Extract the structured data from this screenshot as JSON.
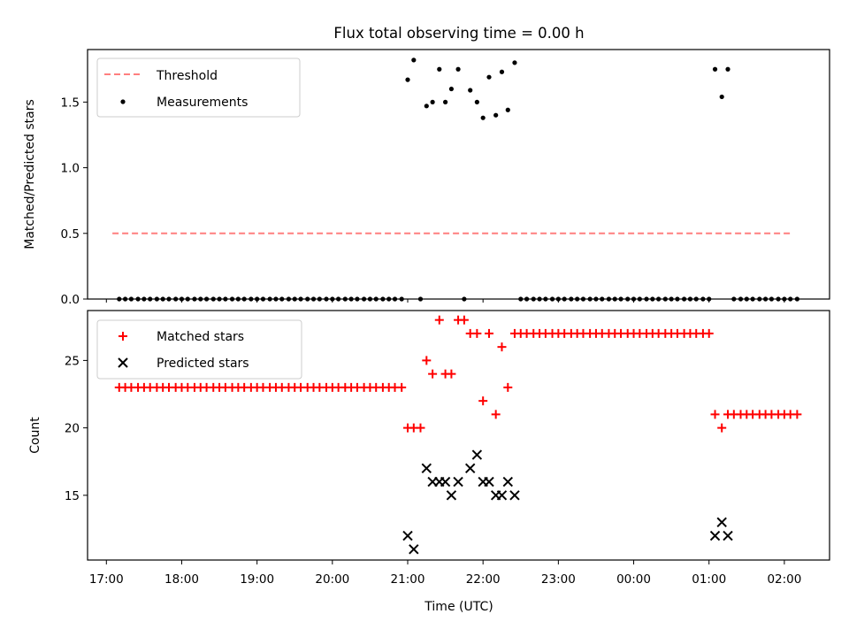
{
  "figure": {
    "title": "Flux total observing time = 0.00 h"
  },
  "chart_data": [
    {
      "type": "scatter",
      "title": "Flux total observing time = 0.00 h",
      "xlabel": "",
      "ylabel": "Matched/Predicted stars",
      "ylim": [
        0.0,
        1.9
      ],
      "yticks": [
        "0.0",
        "0.5",
        "1.0",
        "1.5"
      ],
      "grid": false,
      "legend_position": "top-left",
      "threshold": {
        "name": "Threshold",
        "value": 0.5,
        "x_start": 17.08,
        "x_end": 26.08,
        "color": "#ff7f7f"
      },
      "series": [
        {
          "name": "Measurements",
          "color": "#000000",
          "points": [
            [
              17.17,
              0
            ],
            [
              17.25,
              0
            ],
            [
              17.33,
              0
            ],
            [
              17.42,
              0
            ],
            [
              17.5,
              0
            ],
            [
              17.58,
              0
            ],
            [
              17.67,
              0
            ],
            [
              17.75,
              0
            ],
            [
              17.83,
              0
            ],
            [
              17.92,
              0
            ],
            [
              18.0,
              0
            ],
            [
              18.08,
              0
            ],
            [
              18.17,
              0
            ],
            [
              18.25,
              0
            ],
            [
              18.33,
              0
            ],
            [
              18.42,
              0
            ],
            [
              18.5,
              0
            ],
            [
              18.58,
              0
            ],
            [
              18.67,
              0
            ],
            [
              18.75,
              0
            ],
            [
              18.83,
              0
            ],
            [
              18.92,
              0
            ],
            [
              19.0,
              0
            ],
            [
              19.08,
              0
            ],
            [
              19.17,
              0
            ],
            [
              19.25,
              0
            ],
            [
              19.33,
              0
            ],
            [
              19.42,
              0
            ],
            [
              19.5,
              0
            ],
            [
              19.58,
              0
            ],
            [
              19.67,
              0
            ],
            [
              19.75,
              0
            ],
            [
              19.83,
              0
            ],
            [
              19.92,
              0
            ],
            [
              20.0,
              0
            ],
            [
              20.08,
              0
            ],
            [
              20.17,
              0
            ],
            [
              20.25,
              0
            ],
            [
              20.33,
              0
            ],
            [
              20.42,
              0
            ],
            [
              20.5,
              0
            ],
            [
              20.58,
              0
            ],
            [
              20.67,
              0
            ],
            [
              20.75,
              0
            ],
            [
              20.83,
              0
            ],
            [
              20.92,
              0
            ],
            [
              21.0,
              1.67
            ],
            [
              21.08,
              1.82
            ],
            [
              21.17,
              0
            ],
            [
              21.25,
              1.47
            ],
            [
              21.33,
              1.5
            ],
            [
              21.42,
              1.75
            ],
            [
              21.5,
              1.5
            ],
            [
              21.58,
              1.6
            ],
            [
              21.67,
              1.75
            ],
            [
              21.75,
              0
            ],
            [
              21.83,
              1.59
            ],
            [
              21.92,
              1.5
            ],
            [
              22.0,
              1.38
            ],
            [
              22.08,
              1.69
            ],
            [
              22.17,
              1.4
            ],
            [
              22.25,
              1.73
            ],
            [
              22.33,
              1.44
            ],
            [
              22.42,
              1.8
            ],
            [
              22.5,
              0
            ],
            [
              22.58,
              0
            ],
            [
              22.67,
              0
            ],
            [
              22.75,
              0
            ],
            [
              22.83,
              0
            ],
            [
              22.92,
              0
            ],
            [
              23.0,
              0
            ],
            [
              23.08,
              0
            ],
            [
              23.17,
              0
            ],
            [
              23.25,
              0
            ],
            [
              23.33,
              0
            ],
            [
              23.42,
              0
            ],
            [
              23.5,
              0
            ],
            [
              23.58,
              0
            ],
            [
              23.67,
              0
            ],
            [
              23.75,
              0
            ],
            [
              23.83,
              0
            ],
            [
              23.92,
              0
            ],
            [
              24.0,
              0
            ],
            [
              24.08,
              0
            ],
            [
              24.17,
              0
            ],
            [
              24.25,
              0
            ],
            [
              24.33,
              0
            ],
            [
              24.42,
              0
            ],
            [
              24.5,
              0
            ],
            [
              24.58,
              0
            ],
            [
              24.67,
              0
            ],
            [
              24.75,
              0
            ],
            [
              24.83,
              0
            ],
            [
              24.92,
              0
            ],
            [
              25.0,
              0
            ],
            [
              25.08,
              1.75
            ],
            [
              25.17,
              1.54
            ],
            [
              25.25,
              1.75
            ],
            [
              25.33,
              0
            ],
            [
              25.42,
              0
            ],
            [
              25.5,
              0
            ],
            [
              25.58,
              0
            ],
            [
              25.67,
              0
            ],
            [
              25.75,
              0
            ],
            [
              25.83,
              0
            ],
            [
              25.92,
              0
            ],
            [
              26.0,
              0
            ],
            [
              26.08,
              0
            ],
            [
              26.17,
              0
            ]
          ]
        }
      ]
    },
    {
      "type": "scatter",
      "xlabel": "Time (UTC)",
      "ylabel": "Count",
      "ylim": [
        10.2,
        28.7
      ],
      "yticks": [
        "15",
        "20",
        "25"
      ],
      "xlim": [
        16.75,
        26.6
      ],
      "xticks": [
        {
          "x": 17,
          "label": "17:00"
        },
        {
          "x": 18,
          "label": "18:00"
        },
        {
          "x": 19,
          "label": "19:00"
        },
        {
          "x": 20,
          "label": "20:00"
        },
        {
          "x": 21,
          "label": "21:00"
        },
        {
          "x": 22,
          "label": "22:00"
        },
        {
          "x": 23,
          "label": "23:00"
        },
        {
          "x": 24,
          "label": "00:00"
        },
        {
          "x": 25,
          "label": "01:00"
        },
        {
          "x": 26,
          "label": "02:00"
        }
      ],
      "grid": false,
      "legend_position": "top-left",
      "series": [
        {
          "name": "Matched stars",
          "marker": "plus",
          "color": "#ff0000",
          "points": [
            [
              17.17,
              23
            ],
            [
              17.25,
              23
            ],
            [
              17.33,
              23
            ],
            [
              17.42,
              23
            ],
            [
              17.5,
              23
            ],
            [
              17.58,
              23
            ],
            [
              17.67,
              23
            ],
            [
              17.75,
              23
            ],
            [
              17.83,
              23
            ],
            [
              17.92,
              23
            ],
            [
              18.0,
              23
            ],
            [
              18.08,
              23
            ],
            [
              18.17,
              23
            ],
            [
              18.25,
              23
            ],
            [
              18.33,
              23
            ],
            [
              18.42,
              23
            ],
            [
              18.5,
              23
            ],
            [
              18.58,
              23
            ],
            [
              18.67,
              23
            ],
            [
              18.75,
              23
            ],
            [
              18.83,
              23
            ],
            [
              18.92,
              23
            ],
            [
              19.0,
              23
            ],
            [
              19.08,
              23
            ],
            [
              19.17,
              23
            ],
            [
              19.25,
              23
            ],
            [
              19.33,
              23
            ],
            [
              19.42,
              23
            ],
            [
              19.5,
              23
            ],
            [
              19.58,
              23
            ],
            [
              19.67,
              23
            ],
            [
              19.75,
              23
            ],
            [
              19.83,
              23
            ],
            [
              19.92,
              23
            ],
            [
              20.0,
              23
            ],
            [
              20.08,
              23
            ],
            [
              20.17,
              23
            ],
            [
              20.25,
              23
            ],
            [
              20.33,
              23
            ],
            [
              20.42,
              23
            ],
            [
              20.5,
              23
            ],
            [
              20.58,
              23
            ],
            [
              20.67,
              23
            ],
            [
              20.75,
              23
            ],
            [
              20.83,
              23
            ],
            [
              20.92,
              23
            ],
            [
              21.0,
              20
            ],
            [
              21.08,
              20
            ],
            [
              21.17,
              20
            ],
            [
              21.25,
              25
            ],
            [
              21.33,
              24
            ],
            [
              21.42,
              28
            ],
            [
              21.5,
              24
            ],
            [
              21.58,
              24
            ],
            [
              21.67,
              28
            ],
            [
              21.75,
              28
            ],
            [
              21.83,
              27
            ],
            [
              21.92,
              27
            ],
            [
              22.0,
              22
            ],
            [
              22.08,
              27
            ],
            [
              22.17,
              21
            ],
            [
              22.25,
              26
            ],
            [
              22.33,
              23
            ],
            [
              22.42,
              27
            ],
            [
              22.5,
              27
            ],
            [
              22.58,
              27
            ],
            [
              22.67,
              27
            ],
            [
              22.75,
              27
            ],
            [
              22.83,
              27
            ],
            [
              22.92,
              27
            ],
            [
              23.0,
              27
            ],
            [
              23.08,
              27
            ],
            [
              23.17,
              27
            ],
            [
              23.25,
              27
            ],
            [
              23.33,
              27
            ],
            [
              23.42,
              27
            ],
            [
              23.5,
              27
            ],
            [
              23.58,
              27
            ],
            [
              23.67,
              27
            ],
            [
              23.75,
              27
            ],
            [
              23.83,
              27
            ],
            [
              23.92,
              27
            ],
            [
              24.0,
              27
            ],
            [
              24.08,
              27
            ],
            [
              24.17,
              27
            ],
            [
              24.25,
              27
            ],
            [
              24.33,
              27
            ],
            [
              24.42,
              27
            ],
            [
              24.5,
              27
            ],
            [
              24.58,
              27
            ],
            [
              24.67,
              27
            ],
            [
              24.75,
              27
            ],
            [
              24.83,
              27
            ],
            [
              24.92,
              27
            ],
            [
              25.0,
              27
            ],
            [
              25.08,
              21
            ],
            [
              25.17,
              20
            ],
            [
              25.25,
              21
            ],
            [
              25.33,
              21
            ],
            [
              25.42,
              21
            ],
            [
              25.5,
              21
            ],
            [
              25.58,
              21
            ],
            [
              25.67,
              21
            ],
            [
              25.75,
              21
            ],
            [
              25.83,
              21
            ],
            [
              25.92,
              21
            ],
            [
              26.0,
              21
            ],
            [
              26.08,
              21
            ],
            [
              26.17,
              21
            ]
          ]
        },
        {
          "name": "Predicted stars",
          "marker": "x",
          "color": "#000000",
          "points": [
            [
              21.0,
              12
            ],
            [
              21.08,
              11
            ],
            [
              21.25,
              17
            ],
            [
              21.33,
              16
            ],
            [
              21.42,
              16
            ],
            [
              21.5,
              16
            ],
            [
              21.58,
              15
            ],
            [
              21.67,
              16
            ],
            [
              21.83,
              17
            ],
            [
              21.92,
              18
            ],
            [
              22.0,
              16
            ],
            [
              22.08,
              16
            ],
            [
              22.17,
              15
            ],
            [
              22.25,
              15
            ],
            [
              22.33,
              16
            ],
            [
              22.42,
              15
            ],
            [
              25.08,
              12
            ],
            [
              25.17,
              13
            ],
            [
              25.25,
              12
            ]
          ]
        }
      ]
    }
  ]
}
